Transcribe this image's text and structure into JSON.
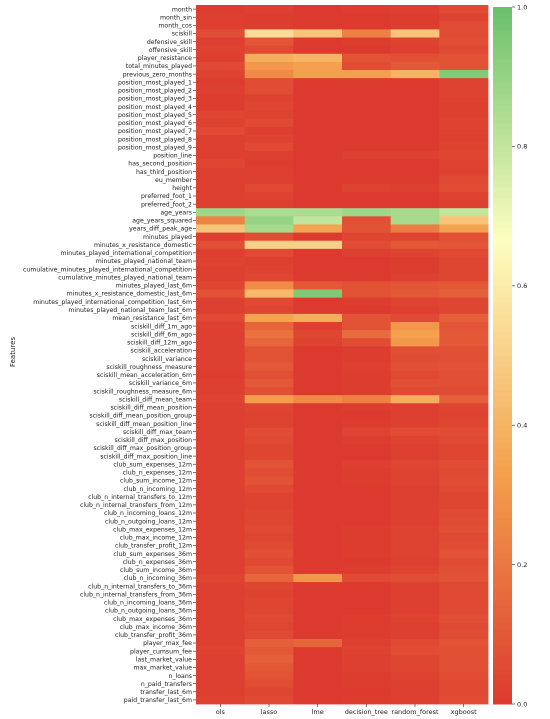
{
  "chart_data": {
    "type": "heatmap",
    "title": "",
    "xlabel": "",
    "ylabel": "Features",
    "columns": [
      "ols",
      "lasso",
      "lme",
      "decision_tree",
      "random_forest",
      "xgboost"
    ],
    "rows": [
      "month",
      "month_sin",
      "month_cos",
      "sciskill",
      "defensive_skill",
      "offensive_skill",
      "player_resistance",
      "total_minutes_played",
      "previous_zero_months",
      "position_most_played_1",
      "position_most_played_2",
      "position_most_played_3",
      "position_most_played_4",
      "position_most_played_5",
      "position_most_played_6",
      "position_most_played_7",
      "position_most_played_8",
      "position_most_played_9",
      "position_line",
      "has_second_position",
      "has_third_position",
      "eu_member",
      "height",
      "preferred_foot_1",
      "preferred_foot_2",
      "age_years",
      "age_years_squared",
      "years_diff_peak_age",
      "minutes_played",
      "minutes_x_resistance_domestic",
      "minutes_played_international_competition",
      "minutes_played_national_team",
      "cumulative_minutes_played_international_competition",
      "cumulative_minutes_played_national_team",
      "minutes_played_last_6m",
      "minutes_x_resistance_domestic_last_6m",
      "minutes_played_international_competition_last_6m",
      "minutes_played_national_team_last_6m",
      "mean_resistance_last_6m",
      "sciskill_diff_1m_ago",
      "sciskill_diff_6m_ago",
      "sciskill_diff_12m_ago",
      "sciskill_acceleration",
      "sciskill_variance",
      "sciskill_roughness_measure",
      "sciskill_mean_acceleration_6m",
      "sciskill_variance_6m",
      "sciskill_roughness_measure_6m",
      "sciskill_diff_mean_team",
      "sciskill_diff_mean_position",
      "sciskill_diff_mean_position_group",
      "sciskill_diff_mean_position_line",
      "sciskill_diff_max_team",
      "sciskill_diff_max_position",
      "sciskill_diff_max_position_group",
      "sciskill_diff_max_position_line",
      "club_sum_expenses_12m",
      "club_n_expenses_12m",
      "club_sum_income_12m",
      "club_n_incoming_12m",
      "club_n_internal_transfers_to_12m",
      "club_n_internal_transfers_from_12m",
      "club_n_incoming_loans_12m",
      "club_n_outgoing_loans_12m",
      "club_max_expenses_12m",
      "club_max_income_12m",
      "club_transfer_profit_12m",
      "club_sum_expenses_36m",
      "club_n_expenses_36m",
      "club_sum_income_36m",
      "club_n_incoming_36m",
      "club_n_internal_transfers_to_36m",
      "club_n_internal_transfers_from_36m",
      "club_n_incoming_loans_36m",
      "club_n_outgoing_loans_36m",
      "club_max_expenses_36m",
      "club_max_income_36m",
      "club_transfer_profit_36m",
      "player_max_fee",
      "player_cumsum_fee",
      "last_market_value",
      "max_market_value",
      "n_loans",
      "n_paid_transfers",
      "transfer_last_6m",
      "paid_transfer_last_6m"
    ],
    "values": [
      [
        0.01,
        0.02,
        0.0,
        0.01,
        0.02,
        0.05
      ],
      [
        0.02,
        0.01,
        0.0,
        0.0,
        0.01,
        0.03
      ],
      [
        0.02,
        0.01,
        0.0,
        0.0,
        0.01,
        0.06
      ],
      [
        0.06,
        0.55,
        0.46,
        0.23,
        0.46,
        0.06
      ],
      [
        0.02,
        0.09,
        0.0,
        0.01,
        0.03,
        0.07
      ],
      [
        0.03,
        0.05,
        0.0,
        0.0,
        0.02,
        0.05
      ],
      [
        0.02,
        0.38,
        0.4,
        0.08,
        0.07,
        0.08
      ],
      [
        0.05,
        0.3,
        0.33,
        0.06,
        0.1,
        0.08
      ],
      [
        0.03,
        0.26,
        0.33,
        0.33,
        0.4,
        0.94
      ],
      [
        0.01,
        0.06,
        0.0,
        0.0,
        0.0,
        0.03
      ],
      [
        0.02,
        0.06,
        0.0,
        0.0,
        0.0,
        0.03
      ],
      [
        0.01,
        0.03,
        0.0,
        0.0,
        0.0,
        0.03
      ],
      [
        0.01,
        0.04,
        0.0,
        0.0,
        0.0,
        0.02
      ],
      [
        0.04,
        0.03,
        0.0,
        0.0,
        0.0,
        0.02
      ],
      [
        0.03,
        0.05,
        0.0,
        0.0,
        0.0,
        0.03
      ],
      [
        0.05,
        0.02,
        0.0,
        0.0,
        0.0,
        0.03
      ],
      [
        0.02,
        0.03,
        0.0,
        0.0,
        0.0,
        0.02
      ],
      [
        0.02,
        0.05,
        0.0,
        0.0,
        0.0,
        0.03
      ],
      [
        0.02,
        0.02,
        0.0,
        0.02,
        0.02,
        0.04
      ],
      [
        0.04,
        0.01,
        0.0,
        0.0,
        0.0,
        0.03
      ],
      [
        0.02,
        0.02,
        0.0,
        0.0,
        0.0,
        0.02
      ],
      [
        0.02,
        0.02,
        0.0,
        0.0,
        0.0,
        0.05
      ],
      [
        0.02,
        0.05,
        0.0,
        0.03,
        0.02,
        0.06
      ],
      [
        0.02,
        0.03,
        0.0,
        0.0,
        0.0,
        0.03
      ],
      [
        0.02,
        0.02,
        0.0,
        0.0,
        0.0,
        0.02
      ],
      [
        0.88,
        0.85,
        0.85,
        0.88,
        0.86,
        0.8
      ],
      [
        0.24,
        0.9,
        0.8,
        0.07,
        0.86,
        0.46
      ],
      [
        0.46,
        0.86,
        0.34,
        0.08,
        0.22,
        0.34
      ],
      [
        0.02,
        0.06,
        0.0,
        0.04,
        0.03,
        0.07
      ],
      [
        0.07,
        0.5,
        0.5,
        0.06,
        0.1,
        0.09
      ],
      [
        0.02,
        0.05,
        0.0,
        0.02,
        0.03,
        0.05
      ],
      [
        0.03,
        0.02,
        0.0,
        0.0,
        0.01,
        0.04
      ],
      [
        0.02,
        0.03,
        0.0,
        0.0,
        0.01,
        0.04
      ],
      [
        0.02,
        0.04,
        0.0,
        0.0,
        0.02,
        0.04
      ],
      [
        0.04,
        0.26,
        0.1,
        0.08,
        0.09,
        0.1
      ],
      [
        0.08,
        0.42,
        0.95,
        0.08,
        0.1,
        0.12
      ],
      [
        0.02,
        0.05,
        0.0,
        0.01,
        0.03,
        0.04
      ],
      [
        0.02,
        0.04,
        0.0,
        0.0,
        0.02,
        0.04
      ],
      [
        0.05,
        0.34,
        0.38,
        0.08,
        0.05,
        0.12
      ],
      [
        0.02,
        0.14,
        0.02,
        0.08,
        0.3,
        0.09
      ],
      [
        0.02,
        0.18,
        0.04,
        0.16,
        0.33,
        0.1
      ],
      [
        0.02,
        0.14,
        0.03,
        0.06,
        0.3,
        0.1
      ],
      [
        0.02,
        0.08,
        0.0,
        0.01,
        0.07,
        0.07
      ],
      [
        0.02,
        0.08,
        0.0,
        0.01,
        0.06,
        0.07
      ],
      [
        0.02,
        0.1,
        0.0,
        0.02,
        0.07,
        0.08
      ],
      [
        0.01,
        0.07,
        0.0,
        0.01,
        0.05,
        0.07
      ],
      [
        0.02,
        0.1,
        0.0,
        0.01,
        0.07,
        0.07
      ],
      [
        0.02,
        0.07,
        0.0,
        0.01,
        0.05,
        0.06
      ],
      [
        0.03,
        0.32,
        0.26,
        0.23,
        0.38,
        0.12
      ],
      [
        0.02,
        0.04,
        0.0,
        0.01,
        0.02,
        0.04
      ],
      [
        0.02,
        0.03,
        0.0,
        0.0,
        0.02,
        0.03
      ],
      [
        0.02,
        0.03,
        0.0,
        0.01,
        0.02,
        0.04
      ],
      [
        0.02,
        0.06,
        0.0,
        0.03,
        0.06,
        0.06
      ],
      [
        0.02,
        0.05,
        0.0,
        0.01,
        0.03,
        0.05
      ],
      [
        0.02,
        0.04,
        0.0,
        0.0,
        0.02,
        0.04
      ],
      [
        0.02,
        0.04,
        0.0,
        0.0,
        0.02,
        0.04
      ],
      [
        0.02,
        0.08,
        0.0,
        0.02,
        0.04,
        0.06
      ],
      [
        0.02,
        0.06,
        0.0,
        0.01,
        0.03,
        0.05
      ],
      [
        0.02,
        0.08,
        0.0,
        0.01,
        0.03,
        0.06
      ],
      [
        0.02,
        0.05,
        0.0,
        0.0,
        0.02,
        0.05
      ],
      [
        0.02,
        0.03,
        0.0,
        0.0,
        0.02,
        0.04
      ],
      [
        0.02,
        0.03,
        0.0,
        0.0,
        0.02,
        0.04
      ],
      [
        0.02,
        0.04,
        0.0,
        0.0,
        0.02,
        0.05
      ],
      [
        0.02,
        0.04,
        0.0,
        0.0,
        0.02,
        0.06
      ],
      [
        0.02,
        0.05,
        0.0,
        0.01,
        0.03,
        0.07
      ],
      [
        0.02,
        0.04,
        0.0,
        0.01,
        0.03,
        0.05
      ],
      [
        0.02,
        0.05,
        0.0,
        0.01,
        0.03,
        0.06
      ],
      [
        0.02,
        0.07,
        0.0,
        0.01,
        0.03,
        0.08
      ],
      [
        0.02,
        0.05,
        0.0,
        0.0,
        0.02,
        0.06
      ],
      [
        0.02,
        0.08,
        0.0,
        0.01,
        0.03,
        0.07
      ],
      [
        0.04,
        0.14,
        0.3,
        0.05,
        0.06,
        0.08
      ],
      [
        0.02,
        0.04,
        0.0,
        0.0,
        0.02,
        0.05
      ],
      [
        0.02,
        0.03,
        0.0,
        0.0,
        0.02,
        0.05
      ],
      [
        0.02,
        0.04,
        0.0,
        0.0,
        0.02,
        0.05
      ],
      [
        0.02,
        0.04,
        0.0,
        0.0,
        0.02,
        0.05
      ],
      [
        0.02,
        0.05,
        0.0,
        0.01,
        0.03,
        0.07
      ],
      [
        0.02,
        0.04,
        0.0,
        0.01,
        0.02,
        0.05
      ],
      [
        0.02,
        0.05,
        0.0,
        0.01,
        0.02,
        0.06
      ],
      [
        0.02,
        0.12,
        0.14,
        0.02,
        0.05,
        0.08
      ],
      [
        0.03,
        0.1,
        0.0,
        0.03,
        0.06,
        0.07
      ],
      [
        0.02,
        0.12,
        0.0,
        0.02,
        0.04,
        0.07
      ],
      [
        0.02,
        0.1,
        0.0,
        0.02,
        0.04,
        0.07
      ],
      [
        0.02,
        0.08,
        0.0,
        0.01,
        0.03,
        0.06
      ],
      [
        0.02,
        0.06,
        0.0,
        0.01,
        0.02,
        0.05
      ],
      [
        0.02,
        0.04,
        0.0,
        0.0,
        0.02,
        0.05
      ],
      [
        0.03,
        0.05,
        0.0,
        0.01,
        0.02,
        0.06
      ]
    ],
    "colorbar": {
      "range": [
        0.0,
        1.0
      ],
      "ticks": [
        "0.0",
        "0.2",
        "0.4",
        "0.6",
        "0.8",
        "1.0"
      ]
    },
    "colormap": [
      "#dc3a2e",
      "#f4a14e",
      "#fdfec0",
      "#6ac06a"
    ],
    "grid": false,
    "legend": "colorbar-right"
  }
}
